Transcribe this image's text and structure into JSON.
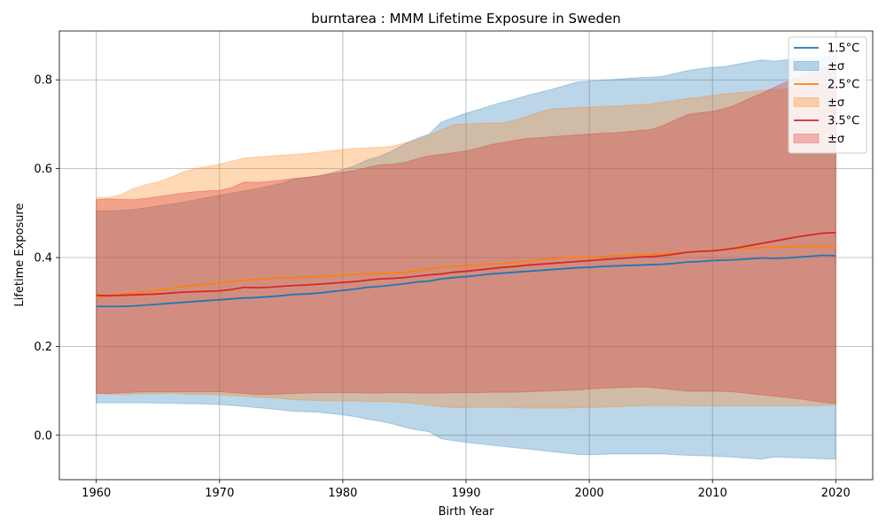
{
  "chart_data": {
    "type": "area",
    "title": "burntarea : MMM Lifetime Exposure in Sweden",
    "xlabel": "Birth Year",
    "ylabel": "Lifetime Exposure",
    "xlim": [
      1957,
      2023
    ],
    "ylim": [
      -0.1,
      0.91
    ],
    "xticks": [
      "1960",
      "1970",
      "1980",
      "1990",
      "2000",
      "2010",
      "2020"
    ],
    "yticks": [
      "0.0",
      "0.2",
      "0.4",
      "0.6",
      "0.8"
    ],
    "grid": true,
    "legend_position": "top-right",
    "legend": [
      "1.5°C",
      "±σ",
      "2.5°C",
      "±σ",
      "3.5°C",
      "±σ"
    ],
    "x": [
      1960,
      1961,
      1962,
      1963,
      1964,
      1965,
      1966,
      1967,
      1968,
      1969,
      1970,
      1971,
      1972,
      1973,
      1974,
      1975,
      1976,
      1977,
      1978,
      1979,
      1980,
      1981,
      1982,
      1983,
      1984,
      1985,
      1986,
      1987,
      1988,
      1989,
      1990,
      1991,
      1992,
      1993,
      1994,
      1995,
      1996,
      1997,
      1998,
      1999,
      2000,
      2001,
      2002,
      2003,
      2004,
      2005,
      2006,
      2007,
      2008,
      2009,
      2010,
      2011,
      2012,
      2013,
      2014,
      2015,
      2016,
      2017,
      2018,
      2019,
      2020
    ],
    "series": [
      {
        "name": "1.5°C",
        "color": "#1f77b4",
        "mean": [
          0.29,
          0.29,
          0.29,
          0.291,
          0.293,
          0.295,
          0.297,
          0.299,
          0.301,
          0.303,
          0.305,
          0.307,
          0.309,
          0.31,
          0.312,
          0.314,
          0.317,
          0.318,
          0.32,
          0.323,
          0.326,
          0.329,
          0.333,
          0.335,
          0.338,
          0.341,
          0.345,
          0.347,
          0.352,
          0.355,
          0.357,
          0.36,
          0.363,
          0.365,
          0.367,
          0.369,
          0.371,
          0.373,
          0.375,
          0.377,
          0.378,
          0.38,
          0.381,
          0.382,
          0.383,
          0.384,
          0.385,
          0.387,
          0.39,
          0.391,
          0.393,
          0.394,
          0.395,
          0.397,
          0.399,
          0.398,
          0.399,
          0.401,
          0.403,
          0.405,
          0.404
        ],
        "upper": [
          0.505,
          0.505,
          0.506,
          0.508,
          0.512,
          0.516,
          0.52,
          0.524,
          0.53,
          0.535,
          0.54,
          0.545,
          0.55,
          0.555,
          0.561,
          0.567,
          0.576,
          0.58,
          0.584,
          0.59,
          0.598,
          0.607,
          0.62,
          0.628,
          0.64,
          0.655,
          0.668,
          0.678,
          0.705,
          0.715,
          0.725,
          0.733,
          0.742,
          0.75,
          0.757,
          0.765,
          0.772,
          0.779,
          0.787,
          0.795,
          0.797,
          0.799,
          0.801,
          0.803,
          0.805,
          0.806,
          0.808,
          0.815,
          0.821,
          0.825,
          0.828,
          0.83,
          0.835,
          0.84,
          0.845,
          0.842,
          0.845,
          0.848,
          0.85,
          0.852,
          0.855
        ],
        "lower": [
          0.073,
          0.073,
          0.073,
          0.073,
          0.073,
          0.072,
          0.072,
          0.071,
          0.071,
          0.07,
          0.069,
          0.067,
          0.065,
          0.062,
          0.06,
          0.057,
          0.054,
          0.053,
          0.052,
          0.049,
          0.046,
          0.042,
          0.036,
          0.032,
          0.026,
          0.018,
          0.012,
          0.008,
          -0.008,
          -0.012,
          -0.016,
          -0.019,
          -0.022,
          -0.025,
          -0.028,
          -0.031,
          -0.034,
          -0.037,
          -0.04,
          -0.043,
          -0.044,
          -0.043,
          -0.042,
          -0.042,
          -0.042,
          -0.042,
          -0.042,
          -0.044,
          -0.045,
          -0.046,
          -0.047,
          -0.048,
          -0.05,
          -0.052,
          -0.054,
          -0.049,
          -0.05,
          -0.051,
          -0.052,
          -0.053,
          -0.054
        ]
      },
      {
        "name": "2.5°C",
        "color": "#ff7f0e",
        "mean": [
          0.31,
          0.315,
          0.317,
          0.32,
          0.323,
          0.326,
          0.33,
          0.335,
          0.338,
          0.34,
          0.343,
          0.346,
          0.349,
          0.351,
          0.353,
          0.354,
          0.355,
          0.356,
          0.357,
          0.358,
          0.36,
          0.362,
          0.363,
          0.364,
          0.365,
          0.367,
          0.37,
          0.374,
          0.378,
          0.38,
          0.381,
          0.383,
          0.385,
          0.387,
          0.389,
          0.392,
          0.395,
          0.397,
          0.399,
          0.4,
          0.401,
          0.402,
          0.404,
          0.405,
          0.406,
          0.407,
          0.408,
          0.41,
          0.412,
          0.414,
          0.416,
          0.418,
          0.42,
          0.421,
          0.422,
          0.423,
          0.424,
          0.425,
          0.425,
          0.425,
          0.425
        ],
        "upper": [
          0.535,
          0.535,
          0.542,
          0.555,
          0.564,
          0.57,
          0.58,
          0.592,
          0.6,
          0.605,
          0.61,
          0.617,
          0.624,
          0.626,
          0.628,
          0.63,
          0.632,
          0.634,
          0.637,
          0.64,
          0.643,
          0.646,
          0.647,
          0.648,
          0.65,
          0.658,
          0.665,
          0.675,
          0.688,
          0.699,
          0.701,
          0.702,
          0.703,
          0.703,
          0.71,
          0.718,
          0.728,
          0.735,
          0.736,
          0.738,
          0.739,
          0.74,
          0.741,
          0.742,
          0.744,
          0.746,
          0.75,
          0.754,
          0.758,
          0.761,
          0.765,
          0.768,
          0.771,
          0.773,
          0.776,
          0.778,
          0.78,
          0.783,
          0.786,
          0.788,
          0.79
        ],
        "lower": [
          0.095,
          0.093,
          0.092,
          0.093,
          0.094,
          0.094,
          0.095,
          0.093,
          0.092,
          0.092,
          0.091,
          0.089,
          0.088,
          0.086,
          0.084,
          0.083,
          0.08,
          0.079,
          0.078,
          0.077,
          0.077,
          0.077,
          0.076,
          0.076,
          0.075,
          0.074,
          0.071,
          0.067,
          0.064,
          0.062,
          0.062,
          0.063,
          0.063,
          0.063,
          0.062,
          0.061,
          0.061,
          0.061,
          0.061,
          0.062,
          0.062,
          0.063,
          0.064,
          0.065,
          0.066,
          0.067,
          0.067,
          0.067,
          0.066,
          0.066,
          0.066,
          0.066,
          0.066,
          0.066,
          0.066,
          0.066,
          0.066,
          0.066,
          0.066,
          0.067,
          0.068
        ]
      },
      {
        "name": "3.5°C",
        "color": "#d62728",
        "mean": [
          0.315,
          0.314,
          0.315,
          0.316,
          0.317,
          0.318,
          0.32,
          0.322,
          0.323,
          0.324,
          0.325,
          0.328,
          0.333,
          0.332,
          0.333,
          0.335,
          0.337,
          0.338,
          0.34,
          0.342,
          0.344,
          0.346,
          0.349,
          0.352,
          0.353,
          0.355,
          0.358,
          0.361,
          0.363,
          0.367,
          0.369,
          0.372,
          0.375,
          0.378,
          0.38,
          0.383,
          0.385,
          0.387,
          0.389,
          0.391,
          0.393,
          0.395,
          0.397,
          0.399,
          0.401,
          0.402,
          0.404,
          0.408,
          0.412,
          0.414,
          0.415,
          0.418,
          0.422,
          0.427,
          0.432,
          0.437,
          0.442,
          0.447,
          0.451,
          0.455,
          0.456
        ],
        "upper": [
          0.53,
          0.532,
          0.531,
          0.53,
          0.533,
          0.537,
          0.541,
          0.545,
          0.548,
          0.55,
          0.551,
          0.558,
          0.57,
          0.569,
          0.571,
          0.574,
          0.578,
          0.58,
          0.583,
          0.588,
          0.592,
          0.596,
          0.603,
          0.609,
          0.61,
          0.614,
          0.622,
          0.629,
          0.632,
          0.636,
          0.64,
          0.646,
          0.654,
          0.659,
          0.664,
          0.668,
          0.67,
          0.672,
          0.674,
          0.676,
          0.678,
          0.68,
          0.681,
          0.683,
          0.686,
          0.688,
          0.697,
          0.71,
          0.722,
          0.726,
          0.729,
          0.735,
          0.745,
          0.758,
          0.77,
          0.783,
          0.795,
          0.807,
          0.817,
          0.827,
          0.836
        ],
        "lower": [
          0.094,
          0.094,
          0.096,
          0.097,
          0.098,
          0.098,
          0.098,
          0.098,
          0.098,
          0.098,
          0.098,
          0.096,
          0.094,
          0.092,
          0.092,
          0.093,
          0.094,
          0.095,
          0.096,
          0.096,
          0.096,
          0.096,
          0.095,
          0.095,
          0.096,
          0.096,
          0.095,
          0.095,
          0.095,
          0.096,
          0.096,
          0.096,
          0.097,
          0.097,
          0.097,
          0.098,
          0.099,
          0.1,
          0.101,
          0.102,
          0.104,
          0.106,
          0.107,
          0.108,
          0.109,
          0.108,
          0.105,
          0.102,
          0.099,
          0.099,
          0.099,
          0.099,
          0.097,
          0.094,
          0.091,
          0.088,
          0.085,
          0.082,
          0.078,
          0.074,
          0.071
        ]
      }
    ]
  }
}
